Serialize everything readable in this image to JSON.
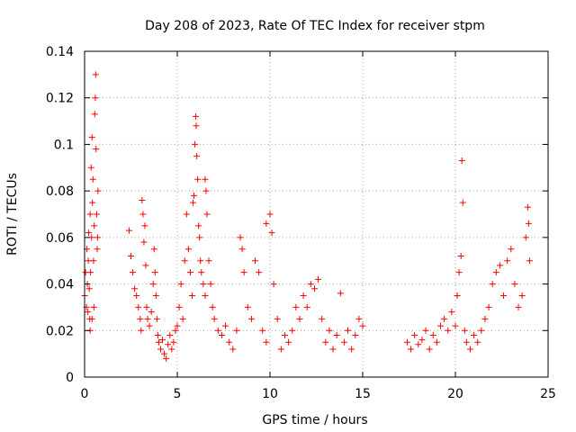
{
  "chart_data": {
    "type": "scatter",
    "title": "Day 208 of 2023, Rate Of TEC Index for receiver stpm",
    "xlabel": "GPS time / hours",
    "ylabel": "ROTI / TECUs",
    "xlim": [
      0,
      25
    ],
    "ylim": [
      0,
      0.14
    ],
    "x_ticks": [
      "0",
      "5",
      "10",
      "15",
      "20",
      "25"
    ],
    "y_ticks": [
      "0",
      "0.02",
      "0.04",
      "0.06",
      "0.08",
      "0.1",
      "0.12",
      "0.14"
    ],
    "grid": true,
    "legend": "none",
    "marker": "+",
    "color": "#ff0000",
    "points": [
      [
        0.0,
        0.035
      ],
      [
        0.05,
        0.045
      ],
      [
        0.1,
        0.03
      ],
      [
        0.12,
        0.055
      ],
      [
        0.15,
        0.04
      ],
      [
        0.18,
        0.028
      ],
      [
        0.2,
        0.05
      ],
      [
        0.22,
        0.062
      ],
      [
        0.25,
        0.038
      ],
      [
        0.28,
        0.025
      ],
      [
        0.3,
        0.07
      ],
      [
        0.32,
        0.045
      ],
      [
        0.35,
        0.09
      ],
      [
        0.38,
        0.06
      ],
      [
        0.4,
        0.103
      ],
      [
        0.42,
        0.075
      ],
      [
        0.45,
        0.085
      ],
      [
        0.48,
        0.05
      ],
      [
        0.5,
        0.03
      ],
      [
        0.52,
        0.065
      ],
      [
        0.55,
        0.113
      ],
      [
        0.58,
        0.12
      ],
      [
        0.6,
        0.13
      ],
      [
        0.62,
        0.098
      ],
      [
        0.65,
        0.07
      ],
      [
        0.68,
        0.055
      ],
      [
        0.7,
        0.06
      ],
      [
        0.72,
        0.08
      ],
      [
        0.3,
        0.02
      ],
      [
        0.4,
        0.025
      ],
      [
        2.4,
        0.063
      ],
      [
        2.5,
        0.052
      ],
      [
        2.6,
        0.045
      ],
      [
        2.7,
        0.038
      ],
      [
        2.8,
        0.035
      ],
      [
        2.9,
        0.03
      ],
      [
        3.0,
        0.025
      ],
      [
        3.05,
        0.02
      ],
      [
        3.1,
        0.076
      ],
      [
        3.15,
        0.07
      ],
      [
        3.2,
        0.058
      ],
      [
        3.25,
        0.065
      ],
      [
        3.3,
        0.048
      ],
      [
        3.35,
        0.03
      ],
      [
        3.4,
        0.025
      ],
      [
        3.5,
        0.022
      ],
      [
        3.6,
        0.028
      ],
      [
        3.7,
        0.04
      ],
      [
        3.75,
        0.055
      ],
      [
        3.8,
        0.045
      ],
      [
        3.85,
        0.035
      ],
      [
        3.9,
        0.025
      ],
      [
        3.95,
        0.018
      ],
      [
        4.0,
        0.015
      ],
      [
        4.1,
        0.012
      ],
      [
        4.2,
        0.016
      ],
      [
        4.3,
        0.01
      ],
      [
        4.4,
        0.008
      ],
      [
        4.5,
        0.014
      ],
      [
        4.6,
        0.018
      ],
      [
        4.7,
        0.012
      ],
      [
        4.8,
        0.015
      ],
      [
        4.9,
        0.02
      ],
      [
        5.0,
        0.022
      ],
      [
        5.1,
        0.03
      ],
      [
        5.2,
        0.04
      ],
      [
        5.3,
        0.025
      ],
      [
        5.4,
        0.05
      ],
      [
        5.5,
        0.07
      ],
      [
        5.6,
        0.055
      ],
      [
        5.7,
        0.045
      ],
      [
        5.8,
        0.035
      ],
      [
        5.85,
        0.075
      ],
      [
        5.9,
        0.078
      ],
      [
        5.95,
        0.1
      ],
      [
        6.0,
        0.112
      ],
      [
        6.02,
        0.108
      ],
      [
        6.05,
        0.095
      ],
      [
        6.1,
        0.085
      ],
      [
        6.15,
        0.065
      ],
      [
        6.2,
        0.06
      ],
      [
        6.25,
        0.05
      ],
      [
        6.3,
        0.045
      ],
      [
        6.4,
        0.04
      ],
      [
        6.5,
        0.035
      ],
      [
        6.5,
        0.085
      ],
      [
        6.55,
        0.08
      ],
      [
        6.6,
        0.07
      ],
      [
        6.7,
        0.05
      ],
      [
        6.8,
        0.04
      ],
      [
        6.9,
        0.03
      ],
      [
        7.0,
        0.025
      ],
      [
        7.2,
        0.02
      ],
      [
        7.4,
        0.018
      ],
      [
        7.6,
        0.022
      ],
      [
        7.8,
        0.015
      ],
      [
        8.0,
        0.012
      ],
      [
        8.2,
        0.02
      ],
      [
        8.4,
        0.06
      ],
      [
        8.5,
        0.055
      ],
      [
        8.6,
        0.045
      ],
      [
        8.8,
        0.03
      ],
      [
        9.0,
        0.025
      ],
      [
        9.2,
        0.05
      ],
      [
        9.4,
        0.045
      ],
      [
        9.6,
        0.02
      ],
      [
        9.8,
        0.015
      ],
      [
        9.8,
        0.066
      ],
      [
        10.0,
        0.07
      ],
      [
        10.1,
        0.062
      ],
      [
        10.2,
        0.04
      ],
      [
        10.4,
        0.025
      ],
      [
        10.6,
        0.012
      ],
      [
        10.8,
        0.018
      ],
      [
        11.0,
        0.015
      ],
      [
        11.2,
        0.02
      ],
      [
        11.4,
        0.03
      ],
      [
        11.6,
        0.025
      ],
      [
        11.8,
        0.035
      ],
      [
        12.0,
        0.03
      ],
      [
        12.2,
        0.04
      ],
      [
        12.4,
        0.038
      ],
      [
        12.6,
        0.042
      ],
      [
        12.8,
        0.025
      ],
      [
        13.0,
        0.015
      ],
      [
        13.2,
        0.02
      ],
      [
        13.4,
        0.012
      ],
      [
        13.6,
        0.018
      ],
      [
        13.8,
        0.036
      ],
      [
        14.0,
        0.015
      ],
      [
        14.2,
        0.02
      ],
      [
        14.4,
        0.012
      ],
      [
        14.6,
        0.018
      ],
      [
        14.8,
        0.025
      ],
      [
        15.0,
        0.022
      ],
      [
        17.4,
        0.015
      ],
      [
        17.6,
        0.012
      ],
      [
        17.8,
        0.018
      ],
      [
        18.0,
        0.014
      ],
      [
        18.2,
        0.016
      ],
      [
        18.4,
        0.02
      ],
      [
        18.6,
        0.012
      ],
      [
        18.8,
        0.018
      ],
      [
        19.0,
        0.015
      ],
      [
        19.2,
        0.022
      ],
      [
        19.4,
        0.025
      ],
      [
        19.6,
        0.02
      ],
      [
        19.8,
        0.028
      ],
      [
        20.0,
        0.022
      ],
      [
        20.1,
        0.035
      ],
      [
        20.2,
        0.045
      ],
      [
        20.3,
        0.052
      ],
      [
        20.35,
        0.093
      ],
      [
        20.4,
        0.075
      ],
      [
        20.5,
        0.02
      ],
      [
        20.6,
        0.015
      ],
      [
        20.8,
        0.012
      ],
      [
        21.0,
        0.018
      ],
      [
        21.2,
        0.015
      ],
      [
        21.4,
        0.02
      ],
      [
        21.6,
        0.025
      ],
      [
        21.8,
        0.03
      ],
      [
        22.0,
        0.04
      ],
      [
        22.2,
        0.045
      ],
      [
        22.4,
        0.048
      ],
      [
        22.6,
        0.035
      ],
      [
        22.8,
        0.05
      ],
      [
        23.0,
        0.055
      ],
      [
        23.2,
        0.04
      ],
      [
        23.4,
        0.03
      ],
      [
        23.6,
        0.035
      ],
      [
        23.8,
        0.06
      ],
      [
        23.9,
        0.073
      ],
      [
        23.95,
        0.066
      ],
      [
        24.0,
        0.05
      ]
    ]
  }
}
